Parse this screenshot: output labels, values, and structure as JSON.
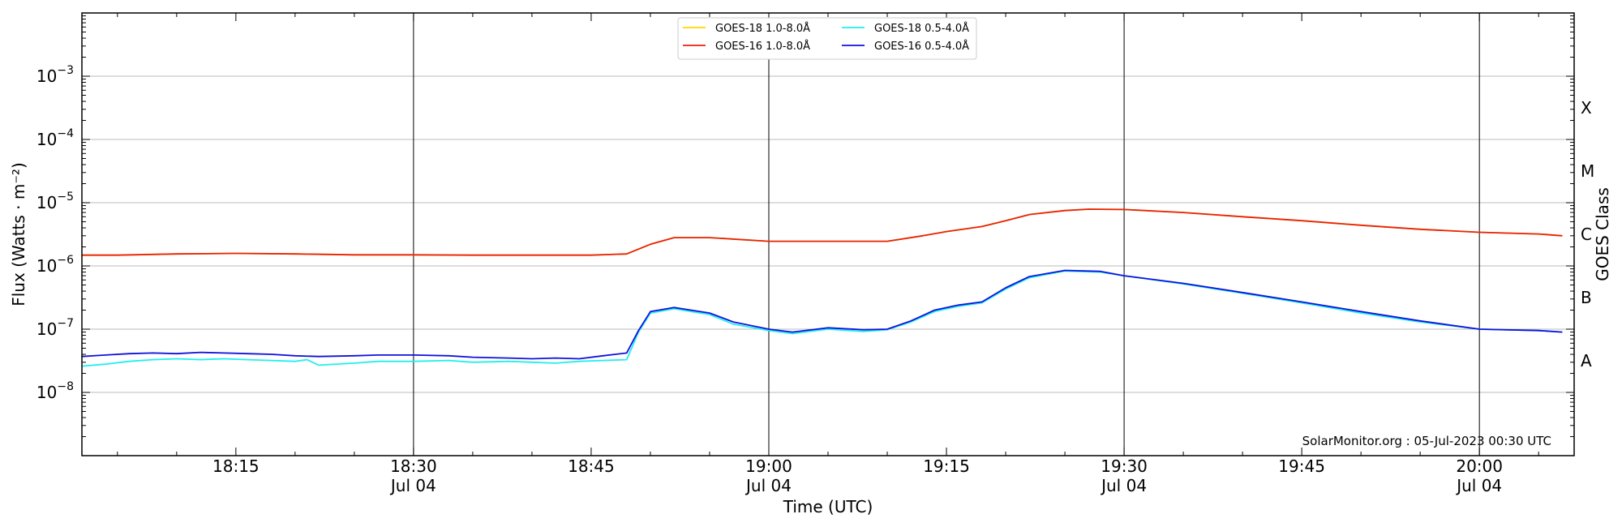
{
  "chart_data": {
    "type": "line",
    "title": "",
    "xlabel": "Time (UTC)",
    "ylabel": "Flux (Watts · m⁻²)",
    "y2label": "GOES Class",
    "yscale": "log",
    "ylim": [
      1e-09,
      0.01
    ],
    "xlim": [
      "2023-07-04 18:02",
      "2023-07-04 20:08"
    ],
    "grid": "horizontal at decades",
    "legend_position": "top-center",
    "credit": "SolarMonitor.org : 05-Jul-2023 00:30 UTC",
    "y_ticks": [
      {
        "value": 1e-08,
        "base": "10",
        "exp": "−8"
      },
      {
        "value": 1e-07,
        "base": "10",
        "exp": "−7"
      },
      {
        "value": 1e-06,
        "base": "10",
        "exp": "−6"
      },
      {
        "value": 1e-05,
        "base": "10",
        "exp": "−5"
      },
      {
        "value": 0.0001,
        "base": "10",
        "exp": "−4"
      },
      {
        "value": 0.001,
        "base": "10",
        "exp": "−3"
      }
    ],
    "x_ticks": [
      {
        "time": "18:15",
        "label": "18:15",
        "date": ""
      },
      {
        "time": "18:30",
        "label": "18:30",
        "date": "Jul 04"
      },
      {
        "time": "18:45",
        "label": "18:45",
        "date": ""
      },
      {
        "time": "19:00",
        "label": "19:00",
        "date": "Jul 04"
      },
      {
        "time": "19:15",
        "label": "19:15",
        "date": ""
      },
      {
        "time": "19:30",
        "label": "19:30",
        "date": "Jul 04"
      },
      {
        "time": "19:45",
        "label": "19:45",
        "date": ""
      },
      {
        "time": "20:00",
        "label": "20:00",
        "date": "Jul 04"
      }
    ],
    "goes_classes": [
      {
        "label": "A",
        "value": 3.16e-08
      },
      {
        "label": "B",
        "value": 3.16e-07
      },
      {
        "label": "C",
        "value": 3.16e-06
      },
      {
        "label": "M",
        "value": 3.16e-05
      },
      {
        "label": "X",
        "value": 0.000316
      }
    ],
    "series": [
      {
        "name": "GOES-18 1.0-8.0Å",
        "color": "#ffd700",
        "x": [
          "18:02",
          "18:05",
          "18:10",
          "18:15",
          "18:20",
          "18:25",
          "18:30",
          "18:35",
          "18:40",
          "18:45",
          "18:48",
          "18:50",
          "18:52",
          "18:55",
          "19:00",
          "19:05",
          "19:10",
          "19:13",
          "19:15",
          "19:18",
          "19:20",
          "19:22",
          "19:25",
          "19:27",
          "19:30",
          "19:35",
          "19:40",
          "19:45",
          "19:50",
          "19:55",
          "20:00",
          "20:05",
          "20:07"
        ],
        "y": [
          1.48e-06,
          1.48e-06,
          1.55e-06,
          1.58e-06,
          1.55e-06,
          1.5e-06,
          1.5e-06,
          1.48e-06,
          1.48e-06,
          1.48e-06,
          1.55e-06,
          2.2e-06,
          2.8e-06,
          2.8e-06,
          2.45e-06,
          2.45e-06,
          2.45e-06,
          3e-06,
          3.5e-06,
          4.2e-06,
          5.2e-06,
          6.5e-06,
          7.5e-06,
          7.9e-06,
          7.8e-06,
          7e-06,
          6e-06,
          5.2e-06,
          4.4e-06,
          3.8e-06,
          3.4e-06,
          3.2e-06,
          3e-06
        ]
      },
      {
        "name": "GOES-16 1.0-8.0Å",
        "color": "#e8220b",
        "x": [
          "18:02",
          "18:05",
          "18:10",
          "18:15",
          "18:20",
          "18:25",
          "18:30",
          "18:35",
          "18:40",
          "18:45",
          "18:48",
          "18:50",
          "18:52",
          "18:55",
          "19:00",
          "19:05",
          "19:10",
          "19:13",
          "19:15",
          "19:18",
          "19:20",
          "19:22",
          "19:25",
          "19:27",
          "19:30",
          "19:35",
          "19:40",
          "19:45",
          "19:50",
          "19:55",
          "20:00",
          "20:05",
          "20:07"
        ],
        "y": [
          1.48e-06,
          1.48e-06,
          1.55e-06,
          1.58e-06,
          1.55e-06,
          1.5e-06,
          1.5e-06,
          1.48e-06,
          1.48e-06,
          1.48e-06,
          1.55e-06,
          2.2e-06,
          2.8e-06,
          2.8e-06,
          2.45e-06,
          2.45e-06,
          2.45e-06,
          3e-06,
          3.5e-06,
          4.2e-06,
          5.2e-06,
          6.5e-06,
          7.5e-06,
          7.9e-06,
          7.8e-06,
          7e-06,
          6e-06,
          5.2e-06,
          4.4e-06,
          3.8e-06,
          3.4e-06,
          3.2e-06,
          3e-06
        ]
      },
      {
        "name": "GOES-18 0.5-4.0Å",
        "color": "#22eeee",
        "x": [
          "18:02",
          "18:04",
          "18:06",
          "18:08",
          "18:10",
          "18:12",
          "18:14",
          "18:16",
          "18:18",
          "18:20",
          "18:21",
          "18:22",
          "18:25",
          "18:27",
          "18:30",
          "18:33",
          "18:35",
          "18:38",
          "18:40",
          "18:42",
          "18:44",
          "18:46",
          "18:48",
          "18:49",
          "18:50",
          "18:52",
          "18:55",
          "18:57",
          "19:00",
          "19:02",
          "19:05",
          "19:08",
          "19:10",
          "19:12",
          "19:14",
          "19:16",
          "19:18",
          "19:20",
          "19:22",
          "19:25",
          "19:28",
          "19:30",
          "19:35",
          "19:40",
          "19:45",
          "19:50",
          "19:55",
          "20:00",
          "20:05",
          "20:07"
        ],
        "y": [
          2.6e-08,
          2.8e-08,
          3.1e-08,
          3.3e-08,
          3.4e-08,
          3.3e-08,
          3.4e-08,
          3.3e-08,
          3.2e-08,
          3.1e-08,
          3.3e-08,
          2.7e-08,
          2.9e-08,
          3.1e-08,
          3.1e-08,
          3.2e-08,
          3e-08,
          3.1e-08,
          3e-08,
          2.9e-08,
          3.1e-08,
          3.2e-08,
          3.3e-08,
          9e-08,
          1.8e-07,
          2.1e-07,
          1.7e-07,
          1.2e-07,
          9.5e-08,
          8.5e-08,
          1e-07,
          9.2e-08,
          9.8e-08,
          1.3e-07,
          1.9e-07,
          2.3e-07,
          2.6e-07,
          4.3e-07,
          6.5e-07,
          8.3e-07,
          8e-07,
          7e-07,
          5.2e-07,
          3.7e-07,
          2.6e-07,
          1.8e-07,
          1.3e-07,
          1e-07,
          9.5e-08,
          9e-08
        ]
      },
      {
        "name": "GOES-16 0.5-4.0Å",
        "color": "#1111dd",
        "x": [
          "18:02",
          "18:04",
          "18:06",
          "18:08",
          "18:10",
          "18:12",
          "18:14",
          "18:16",
          "18:18",
          "18:20",
          "18:22",
          "18:25",
          "18:27",
          "18:30",
          "18:33",
          "18:35",
          "18:38",
          "18:40",
          "18:42",
          "18:44",
          "18:46",
          "18:48",
          "18:49",
          "18:50",
          "18:52",
          "18:55",
          "18:57",
          "19:00",
          "19:02",
          "19:05",
          "19:08",
          "19:10",
          "19:12",
          "19:14",
          "19:16",
          "19:18",
          "19:20",
          "19:22",
          "19:25",
          "19:28",
          "19:30",
          "19:35",
          "19:40",
          "19:45",
          "19:50",
          "19:55",
          "20:00",
          "20:05",
          "20:07"
        ],
        "y": [
          3.7e-08,
          3.9e-08,
          4.1e-08,
          4.2e-08,
          4.1e-08,
          4.3e-08,
          4.2e-08,
          4.1e-08,
          4e-08,
          3.8e-08,
          3.7e-08,
          3.8e-08,
          3.9e-08,
          3.9e-08,
          3.8e-08,
          3.6e-08,
          3.5e-08,
          3.4e-08,
          3.5e-08,
          3.4e-08,
          3.8e-08,
          4.2e-08,
          9.5e-08,
          1.9e-07,
          2.2e-07,
          1.8e-07,
          1.3e-07,
          1e-07,
          9e-08,
          1.05e-07,
          9.8e-08,
          1e-07,
          1.35e-07,
          2e-07,
          2.4e-07,
          2.7e-07,
          4.5e-07,
          6.8e-07,
          8.5e-07,
          8.2e-07,
          7e-07,
          5.3e-07,
          3.8e-07,
          2.7e-07,
          1.9e-07,
          1.35e-07,
          1e-07,
          9.5e-08,
          9e-08
        ]
      }
    ]
  }
}
